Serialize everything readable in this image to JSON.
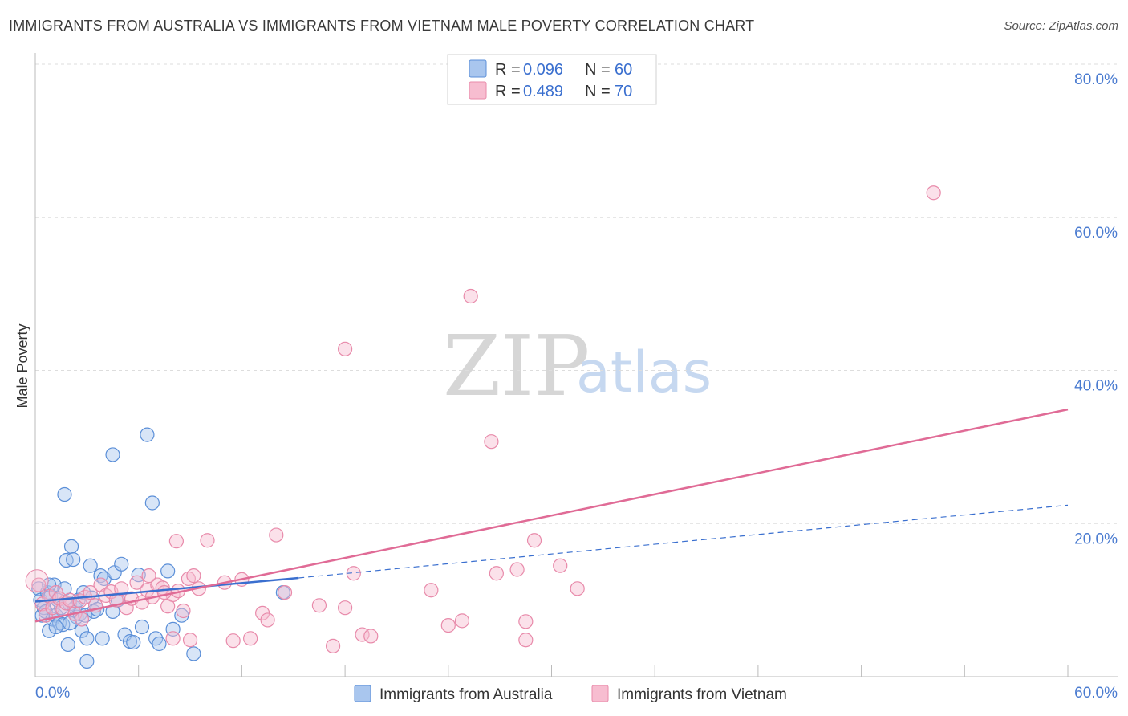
{
  "header": {
    "title": "IMMIGRANTS FROM AUSTRALIA VS IMMIGRANTS FROM VIETNAM MALE POVERTY CORRELATION CHART",
    "source": "Source: ZipAtlas.com"
  },
  "watermark": {
    "zip": "ZIP",
    "atlas": "atlas"
  },
  "colors": {
    "australia_fill": "#a9c6ee",
    "australia_stroke": "#5b8fd8",
    "australia_line": "#3a6fcf",
    "vietnam_fill": "#f7bdd0",
    "vietnam_stroke": "#e88aaa",
    "vietnam_line": "#e06b96",
    "tick_label": "#4a7bd0",
    "grid": "#dddddd"
  },
  "legend": {
    "rows": [
      {
        "r_label": "R =",
        "r_value": "0.096",
        "n_label": "N =",
        "n_value": "60"
      },
      {
        "r_label": "R =",
        "r_value": "0.489",
        "n_label": "N =",
        "n_value": "70"
      }
    ]
  },
  "bottom_legend": {
    "items": [
      {
        "label": "Immigrants from Australia"
      },
      {
        "label": "Immigrants from Vietnam"
      }
    ]
  },
  "chart_data": {
    "type": "scatter",
    "title": "IMMIGRANTS FROM AUSTRALIA VS IMMIGRANTS FROM VIETNAM MALE POVERTY CORRELATION CHART",
    "xlabel": "",
    "ylabel": "Male Poverty",
    "xlim": [
      0,
      60
    ],
    "ylim": [
      0,
      80
    ],
    "x_tick_labels": [
      "0.0%",
      "60.0%"
    ],
    "y_ticks": [
      20,
      40,
      60,
      80
    ],
    "y_tick_labels": [
      "20.0%",
      "40.0%",
      "60.0%",
      "80.0%"
    ],
    "grid": true,
    "legend_position": "top-center",
    "series": [
      {
        "name": "Immigrants from Australia",
        "r": 0.096,
        "n": 60,
        "trend": {
          "x0": 0,
          "y0": 9.8,
          "x1": 15.3,
          "y1": 12.9,
          "dashed_to_x": 60,
          "dashed_to_y": 22.4
        },
        "points": [
          [
            0.2,
            11.5
          ],
          [
            0.3,
            10.0
          ],
          [
            0.4,
            8.0
          ],
          [
            0.5,
            9.0
          ],
          [
            0.6,
            8.5
          ],
          [
            0.7,
            11.0
          ],
          [
            0.8,
            6.0
          ],
          [
            0.9,
            10.5
          ],
          [
            1.0,
            7.5
          ],
          [
            1.1,
            12.0
          ],
          [
            1.2,
            8.0
          ],
          [
            1.3,
            10.0
          ],
          [
            1.4,
            7.0
          ],
          [
            1.5,
            9.0
          ],
          [
            1.6,
            6.8
          ],
          [
            1.7,
            11.5
          ],
          [
            1.8,
            15.2
          ],
          [
            1.9,
            4.2
          ],
          [
            2.0,
            9.5
          ],
          [
            2.1,
            17.0
          ],
          [
            2.2,
            15.3
          ],
          [
            2.3,
            9.0
          ],
          [
            2.4,
            7.8
          ],
          [
            2.5,
            10.0
          ],
          [
            2.6,
            8.2
          ],
          [
            2.7,
            6.0
          ],
          [
            2.8,
            11.0
          ],
          [
            2.9,
            8.0
          ],
          [
            3.0,
            5.0
          ],
          [
            3.2,
            14.5
          ],
          [
            3.3,
            10.3
          ],
          [
            3.4,
            8.5
          ],
          [
            1.7,
            23.8
          ],
          [
            3.8,
            13.2
          ],
          [
            3.9,
            5.0
          ],
          [
            4.0,
            12.8
          ],
          [
            4.5,
            8.5
          ],
          [
            4.6,
            13.6
          ],
          [
            4.8,
            10.0
          ],
          [
            5.0,
            14.7
          ],
          [
            5.2,
            5.5
          ],
          [
            5.5,
            4.6
          ],
          [
            5.7,
            4.5
          ],
          [
            6.0,
            13.3
          ],
          [
            4.5,
            29.0
          ],
          [
            6.2,
            6.5
          ],
          [
            6.5,
            31.6
          ],
          [
            6.8,
            22.7
          ],
          [
            7.0,
            5.0
          ],
          [
            7.2,
            4.3
          ],
          [
            7.7,
            13.8
          ],
          [
            8.0,
            6.2
          ],
          [
            8.5,
            8.0
          ],
          [
            9.2,
            3.0
          ],
          [
            3.0,
            2.0
          ],
          [
            2.0,
            7.0
          ],
          [
            1.2,
            6.5
          ],
          [
            0.8,
            12.0
          ],
          [
            14.4,
            11.0
          ],
          [
            3.6,
            8.8
          ]
        ]
      },
      {
        "name": "Immigrants from Vietnam",
        "r": 0.489,
        "n": 70,
        "trend": {
          "x0": 0,
          "y0": 7.2,
          "x1": 60,
          "y1": 34.9
        },
        "points": [
          [
            0.2,
            12.0
          ],
          [
            0.4,
            9.5
          ],
          [
            0.6,
            8.0
          ],
          [
            0.8,
            10.5
          ],
          [
            1.0,
            9.0
          ],
          [
            1.2,
            11.0
          ],
          [
            1.4,
            10.2
          ],
          [
            1.6,
            8.8
          ],
          [
            1.8,
            9.6
          ],
          [
            2.0,
            10.0
          ],
          [
            2.3,
            8.2
          ],
          [
            2.6,
            9.9
          ],
          [
            2.9,
            10.4
          ],
          [
            3.2,
            11.0
          ],
          [
            3.5,
            9.3
          ],
          [
            3.8,
            12.0
          ],
          [
            4.1,
            10.6
          ],
          [
            4.4,
            11.1
          ],
          [
            4.7,
            10.0
          ],
          [
            5.0,
            11.5
          ],
          [
            5.3,
            9.0
          ],
          [
            5.6,
            10.2
          ],
          [
            5.9,
            12.3
          ],
          [
            6.2,
            9.7
          ],
          [
            6.5,
            11.3
          ],
          [
            6.8,
            10.4
          ],
          [
            7.1,
            12.0
          ],
          [
            7.4,
            11.6
          ],
          [
            7.7,
            9.2
          ],
          [
            8.0,
            10.7
          ],
          [
            8.3,
            11.2
          ],
          [
            8.6,
            8.6
          ],
          [
            8.9,
            12.8
          ],
          [
            9.2,
            13.2
          ],
          [
            9.5,
            11.5
          ],
          [
            6.6,
            13.2
          ],
          [
            7.5,
            11.0
          ],
          [
            8.2,
            17.7
          ],
          [
            10.0,
            17.8
          ],
          [
            11.0,
            12.3
          ],
          [
            12.0,
            12.7
          ],
          [
            11.5,
            4.7
          ],
          [
            12.5,
            5.0
          ],
          [
            13.2,
            8.3
          ],
          [
            13.5,
            7.4
          ],
          [
            14.0,
            18.5
          ],
          [
            14.5,
            11.0
          ],
          [
            16.5,
            9.3
          ],
          [
            17.3,
            4.0
          ],
          [
            18.0,
            9.0
          ],
          [
            18.5,
            13.5
          ],
          [
            19.0,
            5.5
          ],
          [
            19.5,
            5.3
          ],
          [
            18.0,
            42.8
          ],
          [
            23.0,
            11.3
          ],
          [
            24.0,
            6.7
          ],
          [
            24.8,
            7.3
          ],
          [
            25.3,
            49.7
          ],
          [
            26.5,
            30.7
          ],
          [
            26.8,
            13.5
          ],
          [
            28.0,
            14.0
          ],
          [
            28.5,
            7.2
          ],
          [
            29.0,
            17.8
          ],
          [
            30.5,
            14.5
          ],
          [
            31.5,
            11.5
          ],
          [
            28.5,
            4.8
          ],
          [
            52.2,
            63.2
          ],
          [
            2.7,
            7.5
          ],
          [
            9.0,
            4.8
          ],
          [
            8.0,
            5.0
          ]
        ]
      }
    ]
  }
}
